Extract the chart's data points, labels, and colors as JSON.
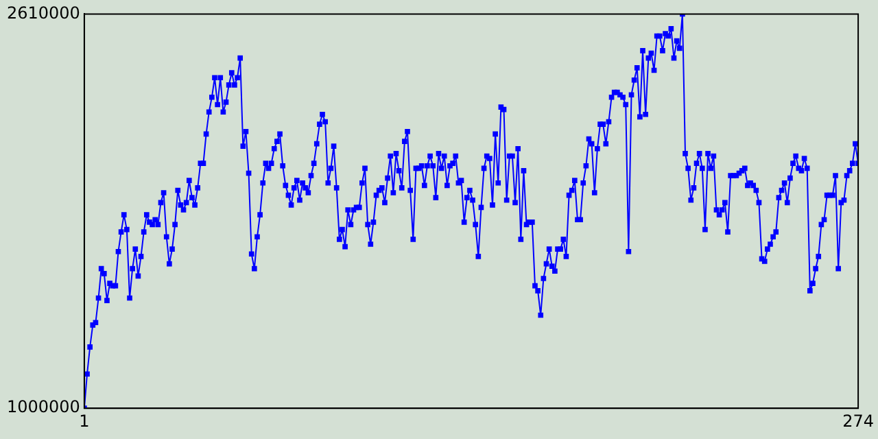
{
  "chart_data": {
    "type": "line",
    "color": "#0000ff",
    "marker": "square",
    "xlim": [
      1,
      274
    ],
    "xticks": [
      1,
      274
    ],
    "ylim": [
      1000000,
      2610000
    ],
    "yticks": [
      1000000,
      2610000
    ],
    "x": [
      1,
      2,
      3,
      4,
      5,
      6,
      7,
      8,
      9,
      10,
      11,
      12,
      13,
      14,
      15,
      16,
      17,
      18,
      19,
      20,
      21,
      22,
      23,
      24,
      25,
      26,
      27,
      28,
      29,
      30,
      31,
      32,
      33,
      34,
      35,
      36,
      37,
      38,
      39,
      40,
      41,
      42,
      43,
      44,
      45,
      46,
      47,
      48,
      49,
      50,
      51,
      52,
      53,
      54,
      55,
      56,
      57,
      58,
      59,
      60,
      61,
      62,
      63,
      64,
      65,
      66,
      67,
      68,
      69,
      70,
      71,
      72,
      73,
      74,
      75,
      76,
      77,
      78,
      79,
      80,
      81,
      82,
      83,
      84,
      85,
      86,
      87,
      88,
      89,
      90,
      91,
      92,
      93,
      94,
      95,
      96,
      97,
      98,
      99,
      100,
      101,
      102,
      103,
      104,
      105,
      106,
      107,
      108,
      109,
      110,
      111,
      112,
      113,
      114,
      115,
      116,
      117,
      118,
      119,
      120,
      121,
      122,
      123,
      124,
      125,
      126,
      127,
      128,
      129,
      130,
      131,
      132,
      133,
      134,
      135,
      136,
      137,
      138,
      139,
      140,
      141,
      142,
      143,
      144,
      145,
      146,
      147,
      148,
      149,
      150,
      151,
      152,
      153,
      154,
      155,
      156,
      157,
      158,
      159,
      160,
      161,
      162,
      163,
      164,
      165,
      166,
      167,
      168,
      169,
      170,
      171,
      172,
      173,
      174,
      175,
      176,
      177,
      178,
      179,
      180,
      181,
      182,
      183,
      184,
      185,
      186,
      187,
      188,
      189,
      190,
      191,
      192,
      193,
      194,
      195,
      196,
      197,
      198,
      199,
      200,
      201,
      202,
      203,
      204,
      205,
      206,
      207,
      208,
      209,
      210,
      211,
      212,
      213,
      214,
      215,
      216,
      217,
      218,
      219,
      220,
      221,
      222,
      223,
      224,
      225,
      226,
      227,
      228,
      229,
      230,
      231,
      232,
      233,
      234,
      235,
      236,
      237,
      238,
      239,
      240,
      241,
      242,
      243,
      244,
      245,
      246,
      247,
      248,
      249,
      250,
      251,
      252,
      253,
      254,
      255,
      256,
      257,
      258,
      259,
      260,
      261,
      262,
      263,
      264,
      265,
      266,
      267,
      268,
      269,
      270,
      271,
      272,
      273,
      274
    ],
    "values": [
      1000000,
      1140000,
      1250000,
      1340000,
      1350000,
      1450000,
      1570000,
      1550000,
      1440000,
      1510000,
      1500000,
      1500000,
      1640000,
      1720000,
      1790000,
      1730000,
      1450000,
      1570000,
      1650000,
      1540000,
      1620000,
      1720000,
      1790000,
      1760000,
      1750000,
      1770000,
      1750000,
      1840000,
      1880000,
      1700000,
      1590000,
      1650000,
      1750000,
      1890000,
      1830000,
      1810000,
      1840000,
      1930000,
      1860000,
      1830000,
      1900000,
      2000000,
      2000000,
      2120000,
      2210000,
      2270000,
      2350000,
      2240000,
      2350000,
      2210000,
      2250000,
      2320000,
      2370000,
      2320000,
      2350000,
      2430000,
      2070000,
      2130000,
      1960000,
      1630000,
      1570000,
      1700000,
      1790000,
      1920000,
      2000000,
      1980000,
      2000000,
      2060000,
      2090000,
      2120000,
      1990000,
      1910000,
      1870000,
      1830000,
      1900000,
      1930000,
      1850000,
      1920000,
      1900000,
      1880000,
      1950000,
      2000000,
      2080000,
      2160000,
      2200000,
      2170000,
      1920000,
      1980000,
      2070000,
      1900000,
      1690000,
      1730000,
      1660000,
      1810000,
      1750000,
      1810000,
      1820000,
      1820000,
      1920000,
      1980000,
      1750000,
      1670000,
      1760000,
      1870000,
      1890000,
      1900000,
      1840000,
      1940000,
      2030000,
      1880000,
      2040000,
      1970000,
      1900000,
      2090000,
      2130000,
      1890000,
      1690000,
      1980000,
      1980000,
      1990000,
      1910000,
      1990000,
      2030000,
      1990000,
      1860000,
      2040000,
      1980000,
      2030000,
      1910000,
      1990000,
      2000000,
      2030000,
      1920000,
      1930000,
      1760000,
      1860000,
      1890000,
      1850000,
      1750000,
      1620000,
      1820000,
      1980000,
      2030000,
      2020000,
      1830000,
      2120000,
      1920000,
      2230000,
      2220000,
      1850000,
      2030000,
      2030000,
      1840000,
      2060000,
      1690000,
      1970000,
      1750000,
      1760000,
      1760000,
      1500000,
      1480000,
      1380000,
      1530000,
      1590000,
      1650000,
      1580000,
      1560000,
      1650000,
      1650000,
      1690000,
      1620000,
      1870000,
      1890000,
      1930000,
      1770000,
      1770000,
      1920000,
      1990000,
      2100000,
      2080000,
      1880000,
      2060000,
      2160000,
      2160000,
      2080000,
      2170000,
      2270000,
      2290000,
      2290000,
      2280000,
      2270000,
      2240000,
      1640000,
      2280000,
      2340000,
      2390000,
      2190000,
      2460000,
      2200000,
      2430000,
      2450000,
      2380000,
      2520000,
      2520000,
      2460000,
      2530000,
      2520000,
      2550000,
      2430000,
      2500000,
      2470000,
      2610000,
      2040000,
      1980000,
      1850000,
      1900000,
      2000000,
      2040000,
      1980000,
      1730000,
      2040000,
      1980000,
      2030000,
      1810000,
      1790000,
      1810000,
      1840000,
      1720000,
      1950000,
      1950000,
      1950000,
      1960000,
      1970000,
      1980000,
      1910000,
      1920000,
      1910000,
      1890000,
      1840000,
      1610000,
      1600000,
      1650000,
      1670000,
      1700000,
      1720000,
      1860000,
      1890000,
      1920000,
      1840000,
      1940000,
      2000000,
      2030000,
      1980000,
      1970000,
      2020000,
      1980000,
      1480000,
      1510000,
      1570000,
      1620000,
      1750000,
      1770000,
      1870000,
      1870000,
      1870000,
      1950000,
      1570000,
      1840000,
      1850000,
      1950000,
      1970000,
      2000000,
      2080000,
      2000000
    ]
  }
}
